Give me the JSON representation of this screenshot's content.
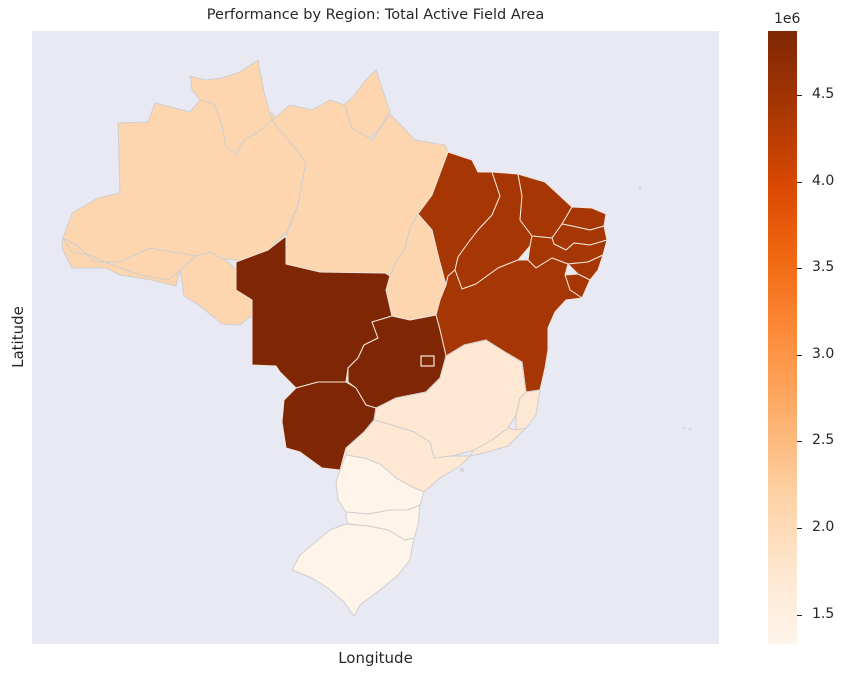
{
  "chart": {
    "title": "Performance by Region: Total Active Field Area",
    "xlabel": "Longitude",
    "ylabel": "Latitude"
  },
  "colorbar": {
    "exponent_label": "1e6",
    "min": 1330000,
    "max": 4870000,
    "ticks": [
      {
        "value": 1500000,
        "label": "1.5"
      },
      {
        "value": 2000000,
        "label": "2.0"
      },
      {
        "value": 2500000,
        "label": "2.5"
      },
      {
        "value": 3000000,
        "label": "3.0"
      },
      {
        "value": 3500000,
        "label": "3.5"
      },
      {
        "value": 4000000,
        "label": "4.0"
      },
      {
        "value": 4500000,
        "label": "4.5"
      }
    ],
    "colormap": "Oranges",
    "stops": [
      "#fff5eb",
      "#fee6ce",
      "#fdd0a2",
      "#fdae6b",
      "#fd8d3c",
      "#f16913",
      "#d94801",
      "#a63603",
      "#7f2704"
    ]
  },
  "chart_data": {
    "type": "choropleth",
    "title": "Performance by Region: Total Active Field Area",
    "xlabel": "Longitude",
    "ylabel": "Latitude",
    "region_values": {
      "North": 2020000,
      "Northeast": 4280000,
      "Center-West": 4870000,
      "Southeast": 1770000,
      "South": 1330000
    },
    "region_colors": {
      "North": "#fdd5ae",
      "Northeast": "#a63603",
      "Center-West": "#7f2704",
      "Southeast": "#fee8d3",
      "South": "#fff4e9"
    },
    "state_region": {
      "AM": "North",
      "PA": "North",
      "RR": "North",
      "AP": "North",
      "AC": "North",
      "RO": "North",
      "TO": "North",
      "MA": "Northeast",
      "PI": "Northeast",
      "CE": "Northeast",
      "RN": "Northeast",
      "PB": "Northeast",
      "PE": "Northeast",
      "AL": "Northeast",
      "SE": "Northeast",
      "BA": "Northeast",
      "MT": "Center-West",
      "MS": "Center-West",
      "GO": "Center-West",
      "DF": "Center-West",
      "MG": "Southeast",
      "SP": "Southeast",
      "RJ": "Southeast",
      "ES": "Southeast",
      "PR": "South",
      "SC": "South",
      "RS": "South"
    },
    "colorbar_range": [
      1330000,
      4870000
    ],
    "grid": false
  }
}
